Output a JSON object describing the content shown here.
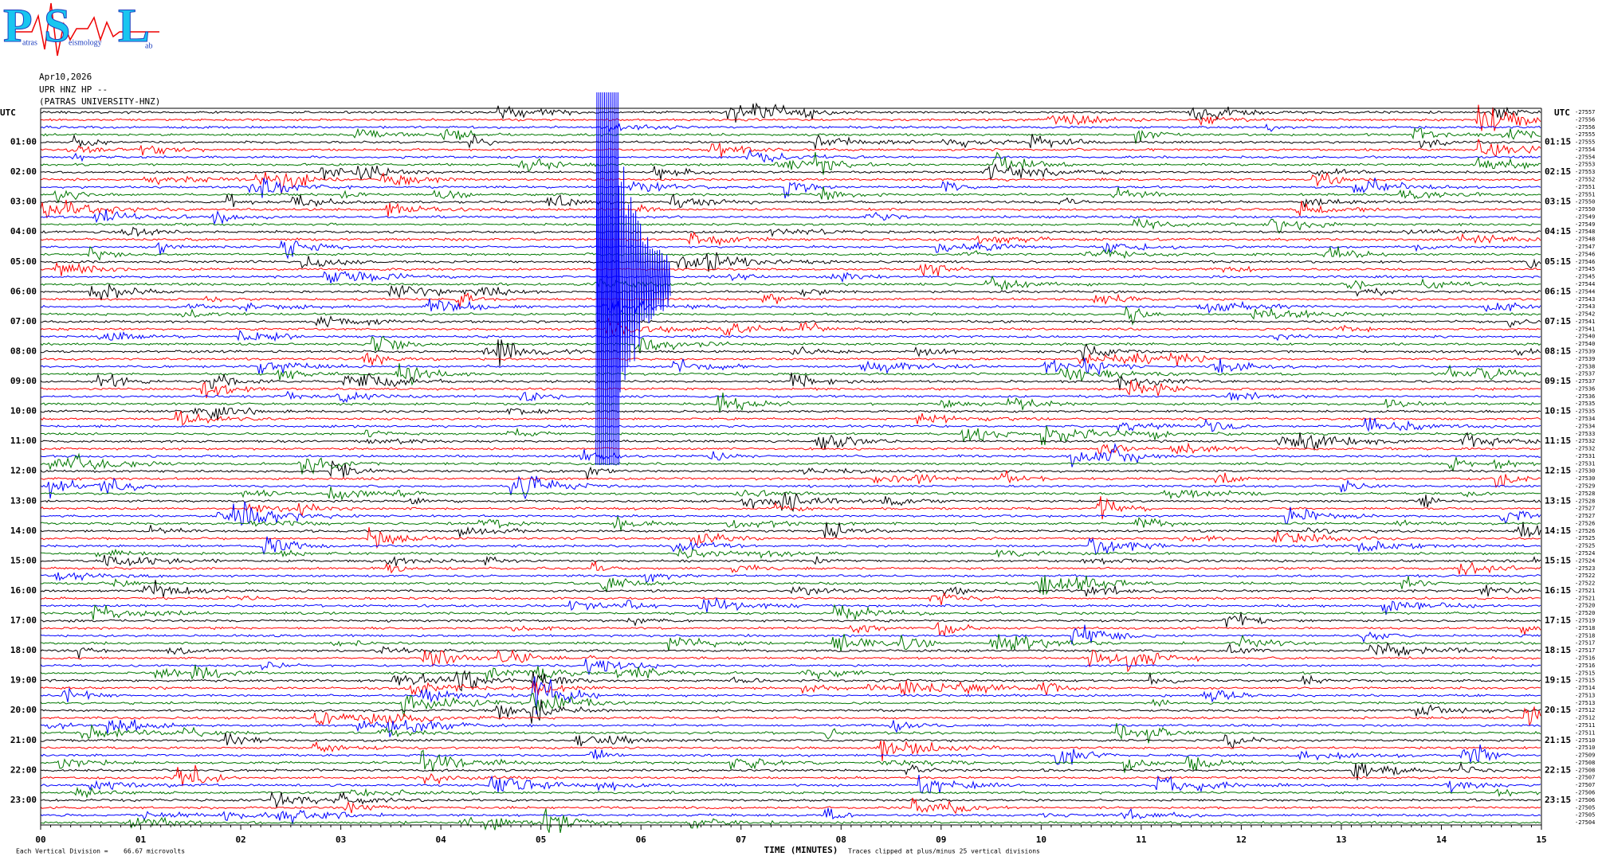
{
  "logo": {
    "p": "P",
    "p_rest": "atras",
    "s": "S",
    "s_rest": "eismology",
    "l": "L",
    "l_rest": "ab"
  },
  "header": {
    "date": "Apr10,2026",
    "station": "UPR HNZ HP --",
    "network": "(PATRAS UNIVERSITY-HNZ)"
  },
  "left_axis": {
    "title": "UTC",
    "labels": [
      "01:00",
      "02:00",
      "03:00",
      "04:00",
      "05:00",
      "06:00",
      "07:00",
      "08:00",
      "09:00",
      "10:00",
      "11:00",
      "12:00",
      "13:00",
      "14:00",
      "15:00",
      "16:00",
      "17:00",
      "18:00",
      "19:00",
      "20:00",
      "21:00",
      "22:00",
      "23:00"
    ]
  },
  "right_axis": {
    "title": "UTC",
    "labels": [
      "01:15",
      "02:15",
      "03:15",
      "04:15",
      "05:15",
      "06:15",
      "07:15",
      "08:15",
      "09:15",
      "10:15",
      "11:15",
      "12:15",
      "13:15",
      "14:15",
      "15:15",
      "16:15",
      "17:15",
      "18:15",
      "19:15",
      "20:15",
      "21:15",
      "22:15",
      "23:15"
    ]
  },
  "row_offsets": [
    "-27557",
    "-27556",
    "-27556",
    "-27555",
    "-27555",
    "-27554",
    "-27554",
    "-27553",
    "-27553",
    "-27552",
    "-27551",
    "-27551",
    "-27550",
    "-27550",
    "-27549",
    "-27549",
    "-27548",
    "-27548",
    "-27547",
    "-27546",
    "-27546",
    "-27545",
    "-27545",
    "-27544",
    "-27544",
    "-27543",
    "-27543",
    "-27542",
    "-27541",
    "-27541",
    "-27540",
    "-27540",
    "-27539",
    "-27539",
    "-27538",
    "-27537",
    "-27537",
    "-27536",
    "-27536",
    "-27535",
    "-27535",
    "-27534",
    "-27534",
    "-27533",
    "-27532",
    "-27532",
    "-27531",
    "-27531",
    "-27530",
    "-27530",
    "-27529",
    "-27528",
    "-27528",
    "-27527",
    "-27527",
    "-27526",
    "-27526",
    "-27525",
    "-27525",
    "-27524",
    "-27524",
    "-27523",
    "-27522",
    "-27522",
    "-27521",
    "-27521",
    "-27520",
    "-27520",
    "-27519",
    "-27518",
    "-27518",
    "-27517",
    "-27517",
    "-27516",
    "-27516",
    "-27515",
    "-27515",
    "-27514",
    "-27513",
    "-27513",
    "-27512",
    "-27512",
    "-27511",
    "-27511",
    "-27510",
    "-27510",
    "-27509",
    "-27508",
    "-27508",
    "-27507",
    "-27507",
    "-27506",
    "-27506",
    "-27505",
    "-27505",
    "-27504"
  ],
  "x_axis": {
    "ticks": [
      "00",
      "01",
      "02",
      "03",
      "04",
      "05",
      "06",
      "07",
      "08",
      "09",
      "10",
      "11",
      "12",
      "13",
      "14",
      "15"
    ],
    "title": "TIME (MINUTES)"
  },
  "footer": {
    "scale_label": "Each Vertical Division =",
    "scale_value": "66.67 microvolts",
    "clip_note": "Traces clipped at plus/minus 25 vertical divisions"
  }
}
